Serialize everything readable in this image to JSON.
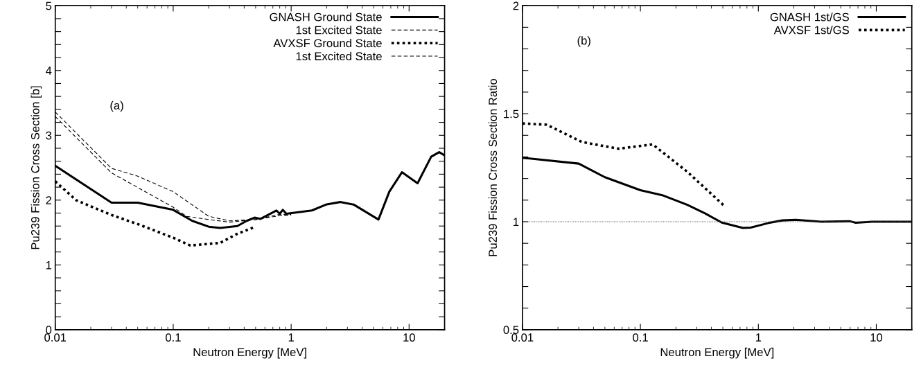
{
  "chart_data": [
    {
      "type": "line",
      "xlabel": "Neutron Energy [MeV]",
      "ylabel": "Pu239 Fission Cross Section [b]",
      "annotations": [
        "(a)"
      ],
      "log": "x",
      "legend": "top right",
      "grid": false,
      "xlim": [
        0.01,
        20
      ],
      "xticks": [
        {
          "value": 0.01,
          "label": "0.01"
        },
        {
          "value": 0.1,
          "label": "0.1"
        },
        {
          "value": 1,
          "label": "1"
        },
        {
          "value": 10,
          "label": "10"
        }
      ],
      "ylim": [
        0,
        5
      ],
      "yticks": [
        0,
        {
          "value": 0.2,
          "label": null
        },
        {
          "value": 0.4,
          "label": null
        },
        {
          "value": 0.6,
          "label": null
        },
        {
          "value": 0.8,
          "label": null
        },
        1,
        {
          "value": 1.2,
          "label": null
        },
        {
          "value": 1.4,
          "label": null
        },
        {
          "value": 1.6,
          "label": null
        },
        {
          "value": 1.8,
          "label": null
        },
        2,
        {
          "value": 2.2,
          "label": null
        },
        {
          "value": 2.4,
          "label": null
        },
        {
          "value": 2.6,
          "label": null
        },
        {
          "value": 2.8,
          "label": null
        },
        3,
        {
          "value": 3.2,
          "label": null
        },
        {
          "value": 3.4,
          "label": null
        },
        {
          "value": 3.6,
          "label": null
        },
        {
          "value": 3.8,
          "label": null
        },
        4,
        {
          "value": 4.2,
          "label": null
        },
        {
          "value": 4.4,
          "label": null
        },
        {
          "value": 4.6,
          "label": null
        },
        {
          "value": 4.8,
          "label": null
        },
        5
      ],
      "series": [
        {
          "name": "GNASH Ground State",
          "color": "#000000",
          "line_style": "solid",
          "x": [
            0.01,
            0.03,
            0.05,
            0.1,
            0.145,
            0.2,
            0.25,
            0.35,
            0.42,
            0.49,
            0.55,
            0.75,
            0.8,
            0.85,
            0.91,
            1.5,
            1.97,
            2.6,
            3.4,
            5.5,
            6.8,
            8.7,
            11.8,
            15.4,
            18,
            20
          ],
          "values": [
            2.53,
            1.96,
            1.96,
            1.85,
            1.68,
            1.59,
            1.57,
            1.6,
            1.68,
            1.73,
            1.71,
            1.84,
            1.79,
            1.85,
            1.79,
            1.84,
            1.93,
            1.97,
            1.93,
            1.7,
            2.13,
            2.43,
            2.26,
            2.67,
            2.74,
            2.69
          ]
        },
        {
          "name": "1st Excited State",
          "color": "#000000",
          "line_style": "dashed",
          "x": [
            0.01,
            0.03,
            0.1,
            0.13,
            0.2,
            0.3,
            0.5,
            0.8,
            1
          ],
          "values": [
            3.29,
            2.42,
            1.89,
            1.75,
            1.7,
            1.66,
            1.7,
            1.76,
            1.77
          ]
        },
        {
          "name": "AVXSF Ground State",
          "color": "#000000",
          "line_style": "dotted",
          "x": [
            0.01,
            0.015,
            0.03,
            0.05,
            0.1,
            0.14,
            0.25,
            0.35,
            0.5
          ],
          "values": [
            2.29,
            2.0,
            1.77,
            1.63,
            1.42,
            1.3,
            1.34,
            1.48,
            1.59
          ]
        },
        {
          "name": "1st Excited State",
          "color": "#000000",
          "line_style": "dashed",
          "x": [
            0.01,
            0.03,
            0.05,
            0.1,
            0.2,
            0.3,
            0.5,
            0.8,
            1
          ],
          "values": [
            3.36,
            2.49,
            2.37,
            2.13,
            1.75,
            1.68,
            1.7,
            1.78,
            1.78
          ]
        }
      ]
    },
    {
      "type": "line",
      "xlabel": "Neutron Energy [MeV]",
      "ylabel": "Pu239 Fission Cross Section Ratio",
      "annotations": [
        "(b)"
      ],
      "log": "x",
      "legend": "top right",
      "grid": false,
      "xlim": [
        0.01,
        20
      ],
      "xticks": [
        {
          "value": 0.01,
          "label": "0.01"
        },
        {
          "value": 0.1,
          "label": "0.1"
        },
        {
          "value": 1,
          "label": "1"
        },
        {
          "value": 10,
          "label": "10"
        }
      ],
      "ylim": [
        0.5,
        2
      ],
      "yticks": [
        0.5,
        {
          "value": 0.6,
          "label": null
        },
        {
          "value": 0.7,
          "label": null
        },
        {
          "value": 0.8,
          "label": null
        },
        {
          "value": 0.9,
          "label": null
        },
        1,
        {
          "value": 1.1,
          "label": null
        },
        {
          "value": 1.2,
          "label": null
        },
        {
          "value": 1.3,
          "label": null
        },
        {
          "value": 1.4,
          "label": null
        },
        1.5,
        {
          "value": 1.6,
          "label": null
        },
        {
          "value": 1.7,
          "label": null
        },
        {
          "value": 1.8,
          "label": null
        },
        {
          "value": 1.9,
          "label": null
        },
        2
      ],
      "ref_lines": [
        {
          "axis": "y",
          "value": 1,
          "color": "#555555",
          "line_style": "dotted"
        }
      ],
      "series": [
        {
          "name": "GNASH 1st/GS",
          "color": "#000000",
          "line_style": "solid",
          "x": [
            0.01,
            0.03,
            0.05,
            0.1,
            0.153,
            0.25,
            0.35,
            0.49,
            0.74,
            0.86,
            1.22,
            1.6,
            2.08,
            3.4,
            6.0,
            6.7,
            9.2,
            20
          ],
          "values": [
            1.296,
            1.269,
            1.206,
            1.146,
            1.123,
            1.078,
            1.04,
            0.996,
            0.971,
            0.973,
            0.994,
            1.006,
            1.009,
            1.0,
            1.002,
            0.995,
            1.0,
            1.0
          ]
        },
        {
          "name": "AVXSF 1st/GS",
          "color": "#000000",
          "line_style": "dotted",
          "x": [
            0.01,
            0.016,
            0.032,
            0.065,
            0.127,
            0.25,
            0.52
          ],
          "values": [
            1.455,
            1.449,
            1.369,
            1.338,
            1.358,
            1.231,
            1.071
          ]
        }
      ]
    }
  ]
}
